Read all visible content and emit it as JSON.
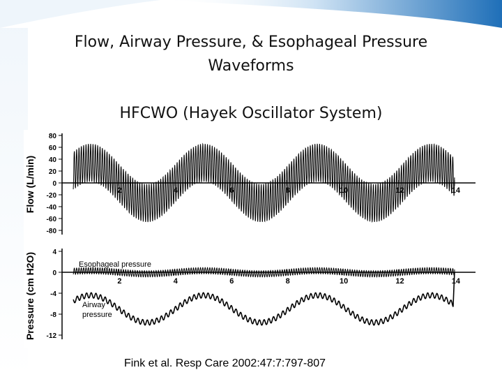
{
  "slide": {
    "title_lines": [
      "Flow, Airway Pressure, & Esophageal Pressure",
      "Waveforms"
    ],
    "subtitle": "HFCWO (Hayek Oscillator System)",
    "citation": "Fink et al. Resp Care 2002:47:7:797-807",
    "background_colors": {
      "top_band": "#1f6fb8",
      "light": "#dbeaf6",
      "figure_bg": "#ffffff"
    }
  },
  "figure": {
    "top_panel": {
      "ylabel": "Flow (L/min)",
      "yticks": [
        "80",
        "60",
        "40",
        "20",
        "0",
        "-20",
        "-40",
        "-60",
        "-80"
      ],
      "xticks": [
        "2",
        "4",
        "6",
        "8",
        "10",
        "12",
        "14"
      ]
    },
    "bottom_panel": {
      "ylabel": "Pressure (cm H2O)",
      "yticks": [
        "4",
        "0",
        "-4",
        "-8",
        "-12"
      ],
      "xticks": [
        "2",
        "4",
        "6",
        "8",
        "10",
        "12",
        "14"
      ],
      "labels": {
        "esophageal": "Esophageal pressure",
        "airway_line1": "Airway",
        "airway_line2": "pressure"
      }
    }
  }
}
